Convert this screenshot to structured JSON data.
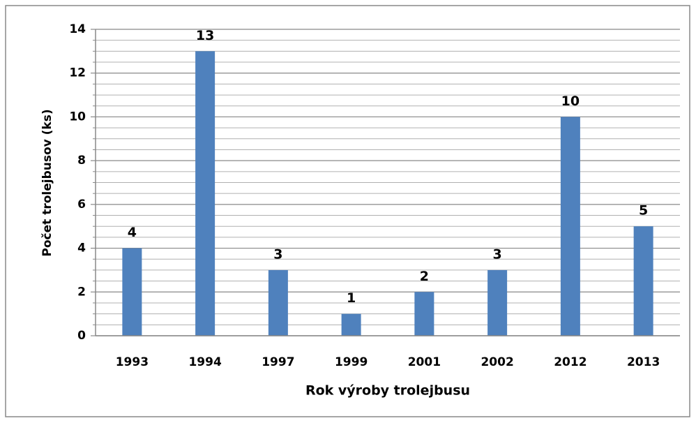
{
  "chart_data": {
    "type": "bar",
    "categories": [
      "1993",
      "1994",
      "1997",
      "1999",
      "2001",
      "2002",
      "2012",
      "2013"
    ],
    "values": [
      4,
      13,
      3,
      1,
      2,
      3,
      10,
      5
    ],
    "color": "#4f81bd",
    "x_label": "Rok výroby trolejbusu",
    "y_label": "Počet trolejbusov (ks)",
    "ylim": [
      0,
      14
    ],
    "yticks": [
      0,
      2,
      4,
      6,
      8,
      10,
      12,
      14
    ],
    "yticks_minor": [
      0.5,
      1,
      1.5,
      2.5,
      3,
      3.5,
      4.5,
      5,
      5.5,
      6.5,
      7,
      7.5,
      8.5,
      9,
      9.5,
      10.5,
      11,
      11.5,
      12.5,
      13,
      13.5
    ],
    "grid": true
  }
}
